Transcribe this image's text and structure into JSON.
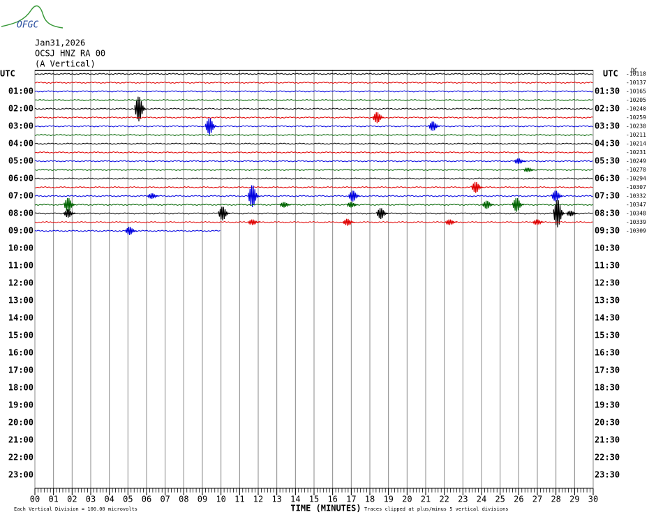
{
  "logo": "OFGC",
  "chart_data": {
    "type": "helicorder",
    "date": "Jan31,2026",
    "station": "OCSJ HNZ RA 00",
    "component": "(A Vertical)",
    "left_top_label": "UTC",
    "right_top_label": "UTC",
    "dc_label": "DC",
    "left_labels": [
      "01:00",
      "02:00",
      "03:00",
      "04:00",
      "05:00",
      "06:00",
      "07:00",
      "08:00",
      "09:00",
      "10:00",
      "11:00",
      "12:00",
      "13:00",
      "14:00",
      "15:00",
      "16:00",
      "17:00",
      "18:00",
      "19:00",
      "20:00",
      "21:00",
      "22:00",
      "23:00"
    ],
    "right_labels": [
      "01:30",
      "02:30",
      "03:30",
      "04:30",
      "05:30",
      "06:30",
      "07:30",
      "08:30",
      "09:30",
      "10:30",
      "11:30",
      "12:30",
      "13:30",
      "14:30",
      "15:30",
      "16:30",
      "17:30",
      "18:30",
      "19:30",
      "20:30",
      "21:30",
      "22:30",
      "23:30"
    ],
    "xlabel": "TIME (MINUTES)",
    "xlim": [
      0,
      30
    ],
    "xticks": [
      {
        "value": 0,
        "label": "00"
      },
      {
        "value": 1,
        "label": "01"
      },
      {
        "value": 2,
        "label": "02"
      },
      {
        "value": 3,
        "label": "03"
      },
      {
        "value": 4,
        "label": "04"
      },
      {
        "value": 5,
        "label": "05"
      },
      {
        "value": 6,
        "label": "06"
      },
      {
        "value": 7,
        "label": "07"
      },
      {
        "value": 8,
        "label": "08"
      },
      {
        "value": 9,
        "label": "09"
      },
      10,
      11,
      12,
      13,
      14,
      15,
      16,
      17,
      18,
      19,
      20,
      21,
      22,
      23,
      24,
      25,
      26,
      27,
      28,
      29,
      30
    ],
    "note_left": "Each Vertical Division =  100.00 microvolts",
    "note_right": "Traces clipped at plus/minus 5 vertical divisions",
    "colors": [
      "#000000",
      "#e00000",
      "#0000e0",
      "#006400"
    ],
    "traces": [
      {
        "offset": "-10118",
        "end": 30,
        "events": []
      },
      {
        "offset": "-10137",
        "end": 30,
        "events": []
      },
      {
        "offset": "-10165",
        "end": 30,
        "events": []
      },
      {
        "offset": "-10205",
        "end": 30,
        "events": []
      },
      {
        "offset": "-10240",
        "end": 30,
        "events": [
          {
            "minute": 5.6,
            "amplitude": 18
          }
        ]
      },
      {
        "offset": "-10259",
        "end": 30,
        "events": [
          {
            "minute": 18.4,
            "amplitude": 8
          }
        ]
      },
      {
        "offset": "-10230",
        "end": 30,
        "events": [
          {
            "minute": 9.4,
            "amplitude": 12
          },
          {
            "minute": 21.4,
            "amplitude": 7
          }
        ]
      },
      {
        "offset": "-10211",
        "end": 30,
        "events": []
      },
      {
        "offset": "-10214",
        "end": 30,
        "events": []
      },
      {
        "offset": "-10231",
        "end": 30,
        "events": []
      },
      {
        "offset": "-10249",
        "end": 30,
        "events": [
          {
            "minute": 26.0,
            "amplitude": 4
          }
        ]
      },
      {
        "offset": "-10270",
        "end": 30,
        "events": [
          {
            "minute": 26.5,
            "amplitude": 3
          }
        ]
      },
      {
        "offset": "-10294",
        "end": 30,
        "events": []
      },
      {
        "offset": "-10307",
        "end": 30,
        "events": [
          {
            "minute": 23.7,
            "amplitude": 8
          }
        ]
      },
      {
        "offset": "-10332",
        "end": 30,
        "events": [
          {
            "minute": 6.3,
            "amplitude": 4
          },
          {
            "minute": 11.7,
            "amplitude": 16
          },
          {
            "minute": 17.1,
            "amplitude": 8
          },
          {
            "minute": 28.0,
            "amplitude": 8
          }
        ]
      },
      {
        "offset": "-10347",
        "end": 30,
        "events": [
          {
            "minute": 1.8,
            "amplitude": 10
          },
          {
            "minute": 13.4,
            "amplitude": 4
          },
          {
            "minute": 17.0,
            "amplitude": 4
          },
          {
            "minute": 24.3,
            "amplitude": 6
          },
          {
            "minute": 25.9,
            "amplitude": 10
          }
        ]
      },
      {
        "offset": "-10348",
        "end": 30,
        "events": [
          {
            "minute": 1.8,
            "amplitude": 6
          },
          {
            "minute": 10.1,
            "amplitude": 10
          },
          {
            "minute": 18.6,
            "amplitude": 8
          },
          {
            "minute": 28.1,
            "amplitude": 20
          },
          {
            "minute": 28.8,
            "amplitude": 4
          }
        ]
      },
      {
        "offset": "-10339",
        "end": 30,
        "events": [
          {
            "minute": 11.7,
            "amplitude": 4
          },
          {
            "minute": 16.8,
            "amplitude": 5
          },
          {
            "minute": 22.3,
            "amplitude": 4
          },
          {
            "minute": 27.0,
            "amplitude": 4
          }
        ]
      },
      {
        "offset": "-10309",
        "end": 10,
        "events": [
          {
            "minute": 5.1,
            "amplitude": 6
          }
        ]
      }
    ]
  }
}
